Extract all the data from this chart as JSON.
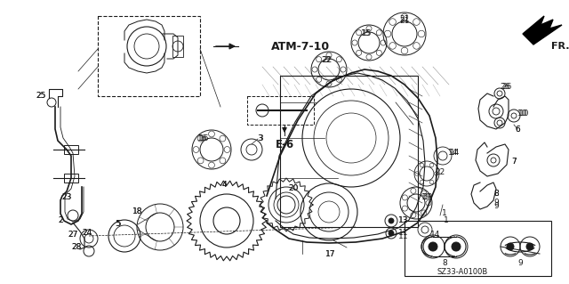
{
  "bg_color": "#ffffff",
  "fig_width": 6.4,
  "fig_height": 3.19,
  "dpi": 100,
  "gc": "#1a1a1a",
  "diagram_code": "SZ33-A0100B",
  "fr_label": "FR.",
  "ref_label1": "ATM-7-10",
  "ref_label2": "E-6",
  "font_size_number": 6.5,
  "font_size_label": 8.5,
  "font_size_code": 6
}
